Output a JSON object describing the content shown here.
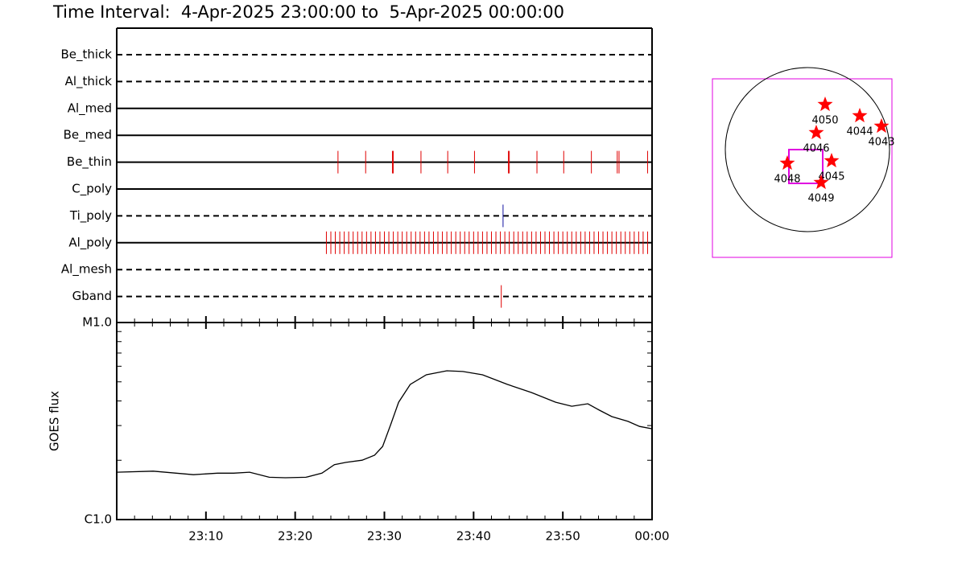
{
  "title": "Time Interval:  4-Apr-2025 23:00:00 to  5-Apr-2025 00:00:00",
  "chart_data": [
    {
      "type": "timeline",
      "xlim": [
        0,
        60
      ],
      "rows": [
        {
          "label": "Be_thick",
          "style": "dashed"
        },
        {
          "label": "Al_thick",
          "style": "dashed"
        },
        {
          "label": "Al_med",
          "style": "solid"
        },
        {
          "label": "Be_med",
          "style": "solid"
        },
        {
          "label": "Be_thin",
          "style": "solid",
          "color": "#e00000",
          "times": [
            24.8,
            27.9,
            30.9,
            31.0,
            34.1,
            37.1,
            40.1,
            43.9,
            44.0,
            47.1,
            50.1,
            53.2,
            56.1,
            56.3,
            59.5
          ]
        },
        {
          "label": "C_poly",
          "style": "solid"
        },
        {
          "label": "Ti_poly",
          "style": "dashed",
          "color": "#1010a0",
          "times": [
            43.3
          ]
        },
        {
          "label": "Al_poly",
          "style": "solid",
          "color": "#e00000",
          "times": [
            23.5,
            24.0,
            24.5,
            25.0,
            25.5,
            26.0,
            26.5,
            27.0,
            27.5,
            28.0,
            28.5,
            29.0,
            29.5,
            30.0,
            30.5,
            31.0,
            31.5,
            32.0,
            32.5,
            33.0,
            33.5,
            34.0,
            34.5,
            35.0,
            35.5,
            36.0,
            36.5,
            37.0,
            37.5,
            38.0,
            38.5,
            39.0,
            39.5,
            40.0,
            40.5,
            41.0,
            41.5,
            42.0,
            42.5,
            43.0,
            43.5,
            44.0,
            44.5,
            45.0,
            45.5,
            46.0,
            46.5,
            47.0,
            47.5,
            48.0,
            48.5,
            49.0,
            49.5,
            50.0,
            50.5,
            51.0,
            51.5,
            52.0,
            52.5,
            53.0,
            53.5,
            54.0,
            54.5,
            55.0,
            55.5,
            56.0,
            56.5,
            57.0,
            57.5,
            58.0,
            58.5,
            59.0,
            59.5
          ]
        },
        {
          "label": "Al_mesh",
          "style": "dashed"
        },
        {
          "label": "Gband",
          "style": "dashed",
          "color": "#e00000",
          "times": [
            43.1
          ]
        }
      ]
    },
    {
      "type": "line",
      "ylabel": "GOES flux",
      "color": "#000000",
      "log": true,
      "x": [
        0,
        4.1,
        8.6,
        11.3,
        13.1,
        14.9,
        17.1,
        18.9,
        21.2,
        23.0,
        24.4,
        25.7,
        27.5,
        28.9,
        29.8,
        30.7,
        31.6,
        32.9,
        34.7,
        37.0,
        38.8,
        41.0,
        43.8,
        46.5,
        49.2,
        51.0,
        52.8,
        54.1,
        55.5,
        57.3,
        58.6,
        60.0
      ],
      "values": [
        1.74e-06,
        1.76e-06,
        1.69e-06,
        1.72e-06,
        1.72e-06,
        1.74e-06,
        1.64e-06,
        1.63e-06,
        1.64e-06,
        1.72e-06,
        1.9e-06,
        1.95e-06,
        2e-06,
        2.12e-06,
        2.35e-06,
        3.03e-06,
        3.94e-06,
        4.85e-06,
        5.43e-06,
        5.69e-06,
        5.64e-06,
        5.43e-06,
        4.85e-06,
        4.41e-06,
        3.94e-06,
        3.76e-06,
        3.87e-06,
        3.59e-06,
        3.33e-06,
        3.15e-06,
        2.97e-06,
        2.89e-06
      ],
      "xlim": [
        0,
        60
      ],
      "xticks": [
        {
          "value": 10,
          "label": "23:10"
        },
        {
          "value": 20,
          "label": "23:20"
        },
        {
          "value": 30,
          "label": "23:30"
        },
        {
          "value": 40,
          "label": "23:40"
        },
        {
          "value": 50,
          "label": "23:50"
        },
        {
          "value": 60,
          "label": "00:00"
        }
      ],
      "ylim": [
        1e-06,
        1e-05
      ],
      "yticks": [
        {
          "value": 1e-06,
          "label": "C1.0"
        },
        {
          "value": 1e-05,
          "label": "M1.0"
        }
      ]
    }
  ],
  "map": {
    "regions": [
      "4050",
      "4044",
      "4043",
      "4046",
      "4045",
      "4048",
      "4049"
    ]
  }
}
